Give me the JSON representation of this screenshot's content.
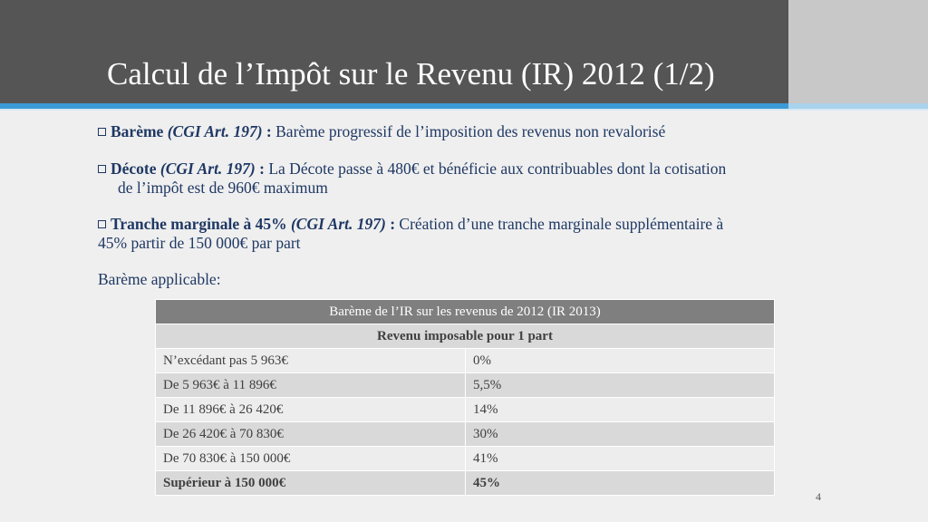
{
  "title": "Calcul de l’Impôt sur le Revenu (IR) 2012 (1/2)",
  "bullets": [
    {
      "label": "Barème",
      "ref": "(CGI Art. 197)",
      "sep": " : ",
      "text": "Barème progressif de l’imposition des revenus non revalorisé"
    },
    {
      "label": "Décote",
      "ref": "(CGI Art. 197)",
      "sep": " : ",
      "text": "La Décote passe à 480€ et bénéficie aux contribuables dont la cotisation",
      "text2": "de l’impôt est de 960€ maximum"
    },
    {
      "label": "Tranche marginale à 45%",
      "ref": "(CGI Art. 197)",
      "sep": " : ",
      "text": "Création d’une tranche marginale supplémentaire à",
      "text2": "45% partir de 150 000€ par part"
    }
  ],
  "bareme_label": "Barème applicable:",
  "table": {
    "title": "Barème de l’IR sur les revenus de 2012 (IR 2013)",
    "subtitle": "Revenu imposable pour 1 part",
    "rows": [
      {
        "range": "N’excédant pas 5 963€",
        "rate": "0%"
      },
      {
        "range": "De 5 963€ à 11 896€",
        "rate": "5,5%"
      },
      {
        "range": "De 11 896€ à 26 420€",
        "rate": "14%"
      },
      {
        "range": "De 26 420€ à 70 830€",
        "rate": "30%"
      },
      {
        "range": "De 70 830€ à 150 000€",
        "rate": "41%"
      },
      {
        "range": "Supérieur à 150 000€",
        "rate": "45%"
      }
    ]
  },
  "page_number": "4"
}
